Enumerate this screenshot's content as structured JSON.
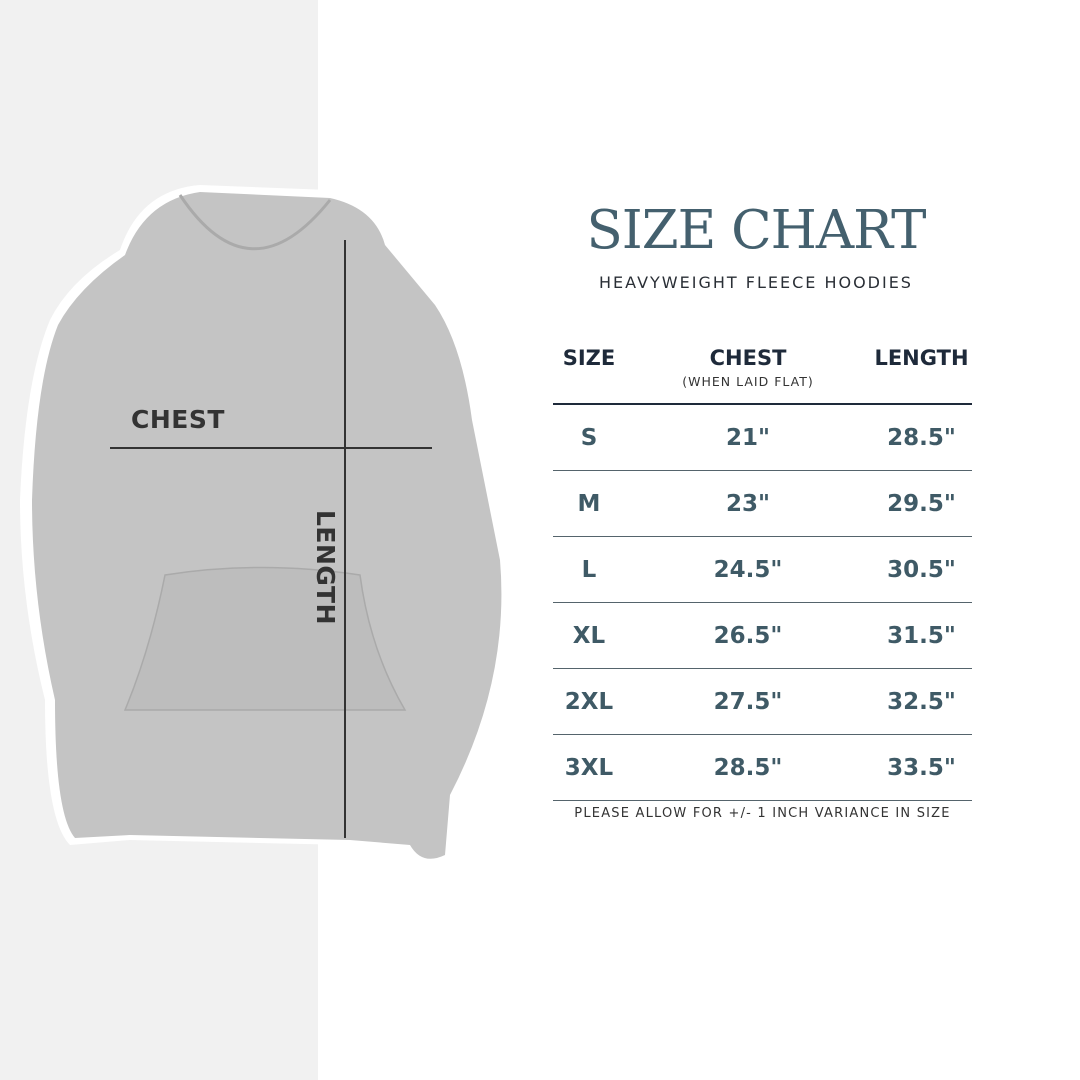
{
  "colors": {
    "title": "#44606e",
    "header": "#1e2a3a",
    "value": "#3f5a66",
    "hoodie": "#c4c4c4",
    "left_background": "#f1f1f1"
  },
  "image": {
    "chest_label": "CHEST",
    "length_label": "LENGTH"
  },
  "title": "SIZE CHART",
  "subtitle": "HEAVYWEIGHT FLEECE HOODIES",
  "table": {
    "headers": [
      {
        "label": "SIZE"
      },
      {
        "label": "CHEST",
        "note": "(WHEN LAID FLAT)"
      },
      {
        "label": "LENGTH"
      }
    ],
    "rows": [
      {
        "size": "S",
        "chest": "21\"",
        "length": "28.5\""
      },
      {
        "size": "M",
        "chest": "23\"",
        "length": "29.5\""
      },
      {
        "size": "L",
        "chest": "24.5\"",
        "length": "30.5\""
      },
      {
        "size": "XL",
        "chest": "26.5\"",
        "length": "31.5\""
      },
      {
        "size": "2XL",
        "chest": "27.5\"",
        "length": "32.5\""
      },
      {
        "size": "3XL",
        "chest": "28.5\"",
        "length": "33.5\""
      }
    ]
  },
  "footnote": "PLEASE ALLOW FOR +/- 1 INCH VARIANCE IN SIZE"
}
